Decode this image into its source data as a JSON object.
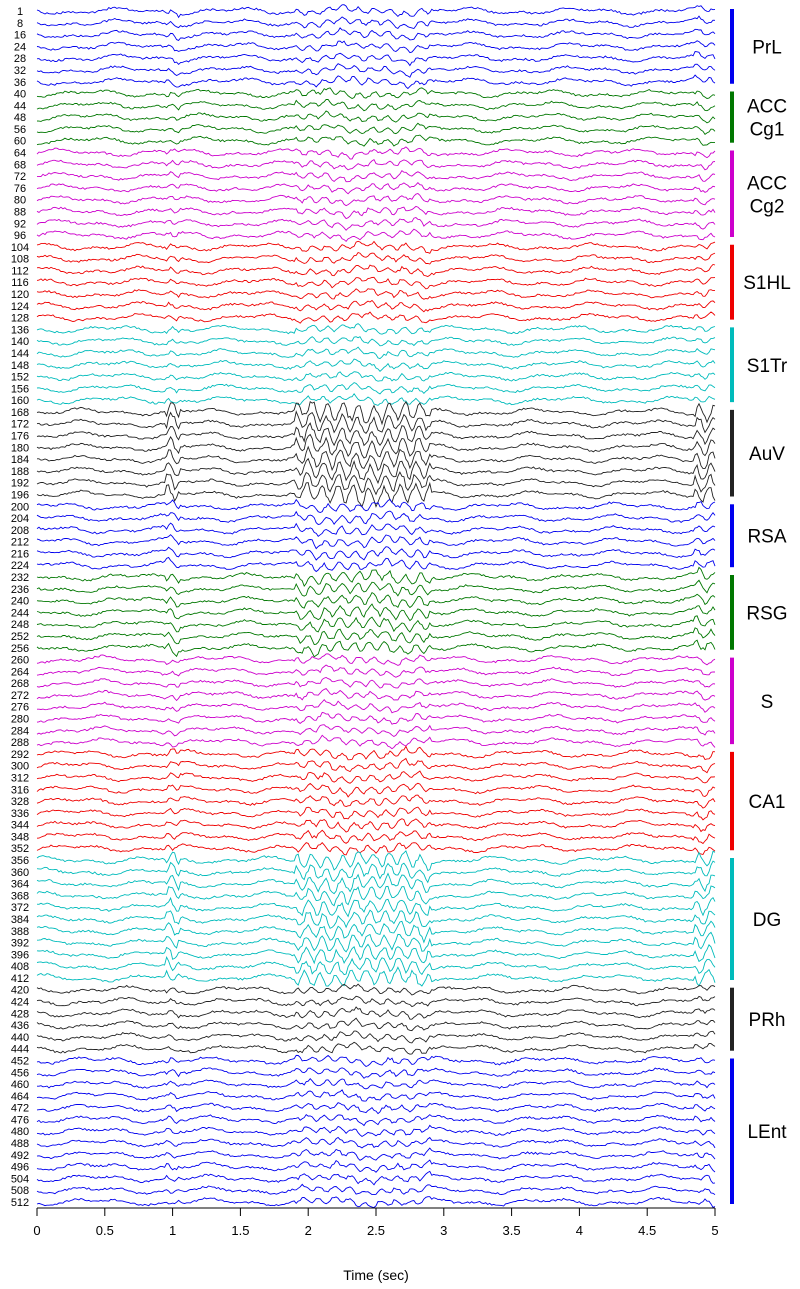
{
  "chart_data": {
    "type": "line",
    "xlabel": "Time (sec)",
    "xlim": [
      0,
      5
    ],
    "x_ticks": [
      "0",
      "0.5",
      "1",
      "1.5",
      "2",
      "2.5",
      "3",
      "3.5",
      "4",
      "4.5",
      "5"
    ],
    "regions": [
      {
        "name": "PrL",
        "lines": [
          "PrL"
        ],
        "color": "#0000ee",
        "channels": [
          "1",
          "8",
          "16",
          "24",
          "28",
          "32",
          "36"
        ]
      },
      {
        "name": "ACC Cg1",
        "lines": [
          "ACC",
          "Cg1"
        ],
        "color": "#007700",
        "channels": [
          "40",
          "44",
          "48",
          "56",
          "60"
        ]
      },
      {
        "name": "ACC Cg2",
        "lines": [
          "ACC",
          "Cg2"
        ],
        "color": "#cc00cc",
        "channels": [
          "64",
          "68",
          "72",
          "76",
          "80",
          "88",
          "92",
          "96"
        ]
      },
      {
        "name": "S1HL",
        "lines": [
          "S1HL"
        ],
        "color": "#ee0000",
        "channels": [
          "104",
          "108",
          "112",
          "116",
          "120",
          "124",
          "128"
        ]
      },
      {
        "name": "S1Tr",
        "lines": [
          "S1Tr"
        ],
        "color": "#00bbbb",
        "channels": [
          "136",
          "140",
          "144",
          "148",
          "152",
          "156",
          "160"
        ]
      },
      {
        "name": "AuV",
        "lines": [
          "AuV"
        ],
        "color": "#222222",
        "channels": [
          "168",
          "172",
          "176",
          "180",
          "184",
          "188",
          "192",
          "196"
        ]
      },
      {
        "name": "RSA",
        "lines": [
          "RSA"
        ],
        "color": "#0000ee",
        "channels": [
          "200",
          "204",
          "208",
          "212",
          "216",
          "224"
        ]
      },
      {
        "name": "RSG",
        "lines": [
          "RSG"
        ],
        "color": "#007700",
        "channels": [
          "232",
          "236",
          "240",
          "244",
          "248",
          "252",
          "256"
        ]
      },
      {
        "name": "S",
        "lines": [
          "S"
        ],
        "color": "#cc00cc",
        "channels": [
          "260",
          "264",
          "268",
          "272",
          "276",
          "280",
          "284",
          "288"
        ]
      },
      {
        "name": "CA1",
        "lines": [
          "CA1"
        ],
        "color": "#ee0000",
        "channels": [
          "292",
          "300",
          "312",
          "316",
          "328",
          "336",
          "344",
          "348",
          "352"
        ]
      },
      {
        "name": "DG",
        "lines": [
          "DG"
        ],
        "color": "#00bbbb",
        "channels": [
          "356",
          "360",
          "364",
          "368",
          "372",
          "384",
          "388",
          "392",
          "396",
          "408",
          "412"
        ]
      },
      {
        "name": "PRh",
        "lines": [
          "PRh"
        ],
        "color": "#222222",
        "channels": [
          "420",
          "424",
          "428",
          "436",
          "440",
          "444"
        ]
      },
      {
        "name": "LEnt",
        "lines": [
          "LEnt"
        ],
        "color": "#0000ee",
        "channels": [
          "452",
          "456",
          "460",
          "464",
          "472",
          "476",
          "480",
          "488",
          "492",
          "496",
          "504",
          "508",
          "512"
        ]
      }
    ]
  }
}
